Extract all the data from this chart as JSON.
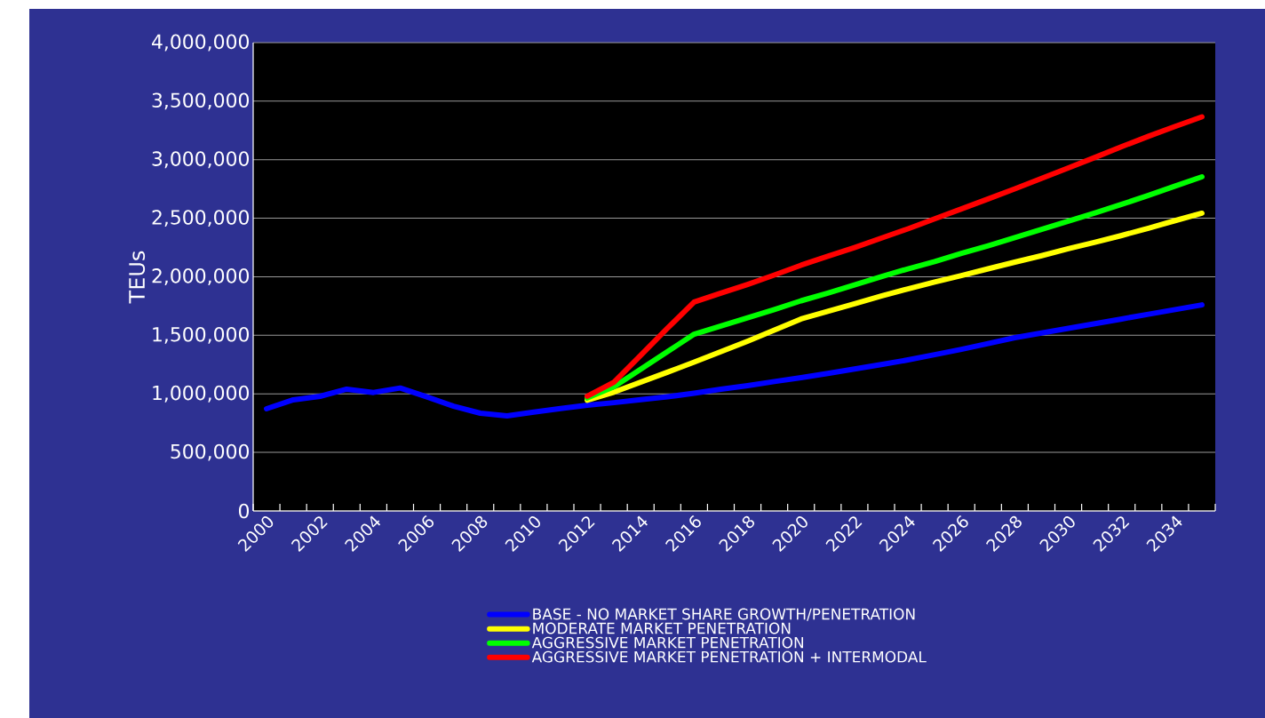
{
  "chart_data": {
    "type": "line",
    "ylabel": "TEUs",
    "categories": [
      "2000",
      null,
      "2002",
      null,
      "2004",
      null,
      "2006",
      null,
      "2008",
      null,
      "2010",
      null,
      "2012",
      null,
      "2014",
      null,
      "2016",
      null,
      "2018",
      null,
      "2020",
      null,
      "2022",
      null,
      "2024",
      null,
      "2026",
      null,
      "2028",
      null,
      "2030",
      null,
      "2032",
      null,
      "2034",
      null
    ],
    "ylim": [
      0,
      4000000
    ],
    "yticks": [
      {
        "value": 0,
        "label": "0"
      },
      {
        "value": 500000,
        "label": "500,000"
      },
      {
        "value": 1000000,
        "label": "1,000,000"
      },
      {
        "value": 1500000,
        "label": "1,500,000"
      },
      {
        "value": 2000000,
        "label": "2,000,000"
      },
      {
        "value": 2500000,
        "label": "2,500,000"
      },
      {
        "value": 3000000,
        "label": "3,000,000"
      },
      {
        "value": 3500000,
        "label": "3,500,000"
      },
      {
        "value": 4000000,
        "label": "4,000,000"
      }
    ],
    "grid": "y",
    "legend": "bottom",
    "marker": "none",
    "line_style": "solid",
    "series": [
      {
        "name": "BASE - NO MARKET SHARE GROWTH/PENETRATION",
        "color": "#0000ff",
        "values": [
          873000,
          949000,
          979000,
          1040000,
          1012000,
          1050000,
          974000,
          895000,
          835000,
          812000,
          845000,
          875000,
          903000,
          925000,
          950000,
          975000,
          1005000,
          1040000,
          1070000,
          1105000,
          1138000,
          1175000,
          1212000,
          1250000,
          1290000,
          1335000,
          1380000,
          1430000,
          1480000,
          1520000,
          1560000,
          1600000,
          1640000,
          1680000,
          1720000,
          1760000
        ]
      },
      {
        "name": "MODERATE MARKET PENETRATION",
        "color": "#ffff00",
        "values": [
          null,
          null,
          null,
          null,
          null,
          null,
          null,
          null,
          null,
          null,
          null,
          null,
          945000,
          1015000,
          1100000,
          1185000,
          1271000,
          1360000,
          1450000,
          1545000,
          1640000,
          1705000,
          1770000,
          1835000,
          1897000,
          1955000,
          2010000,
          2068000,
          2125000,
          2180000,
          2240000,
          2295000,
          2353000,
          2415000,
          2480000,
          2543000
        ]
      },
      {
        "name": "AGGRESSIVE MARKET PENETRATION",
        "color": "#00ff00",
        "values": [
          null,
          null,
          null,
          null,
          null,
          null,
          null,
          null,
          null,
          null,
          null,
          null,
          965000,
          1060000,
          1210000,
          1360000,
          1510000,
          1580000,
          1650000,
          1720000,
          1795000,
          1860000,
          1930000,
          2000000,
          2068000,
          2130000,
          2200000,
          2265000,
          2334000,
          2405000,
          2475000,
          2545000,
          2619000,
          2695000,
          2775000,
          2854000
        ]
      },
      {
        "name": "AGGRESSIVE MARKET PENETRATION + INTERMODAL",
        "color": "#ff0000",
        "values": [
          null,
          null,
          null,
          null,
          null,
          null,
          null,
          null,
          null,
          null,
          null,
          null,
          980000,
          1100000,
          1330000,
          1560000,
          1784000,
          1860000,
          1935000,
          2015000,
          2099000,
          2175000,
          2250000,
          2330000,
          2410000,
          2495000,
          2580000,
          2665000,
          2751000,
          2840000,
          2930000,
          3020000,
          3112000,
          3200000,
          3285000,
          3366000
        ]
      }
    ]
  }
}
